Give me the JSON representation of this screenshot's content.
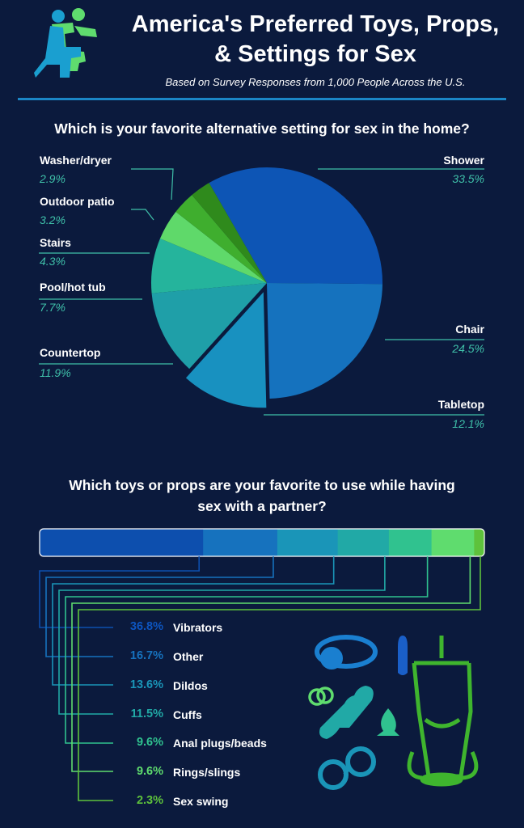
{
  "header": {
    "title_line1": "America's Preferred Toys, Props,",
    "title_line2": "& Settings for Sex",
    "subtitle": "Based on Survey Responses from 1,000 People Across the U.S."
  },
  "colors": {
    "background": "#0b1a3d",
    "accent_rule": "#1b86c6",
    "value_text": "#3fc0a9"
  },
  "chart_data": [
    {
      "type": "pie",
      "title": "Which is your favorite alternative setting for sex in the home?",
      "categories": [
        "Shower",
        "Chair",
        "Tabletop",
        "Countertop",
        "Pool/hot tub",
        "Stairs",
        "Outdoor patio",
        "Washer/dryer"
      ],
      "values": [
        33.5,
        24.5,
        12.1,
        11.9,
        7.7,
        4.3,
        3.2,
        2.9
      ],
      "value_labels": [
        "33.5%",
        "24.5%",
        "12.1%",
        "11.9%",
        "7.7%",
        "4.3%",
        "3.2%",
        "2.9%"
      ],
      "colors": [
        "#0d55b5",
        "#1572be",
        "#1891c0",
        "#1f9fa8",
        "#25b49c",
        "#5fd96a",
        "#3fae2e",
        "#2f8a1c"
      ]
    },
    {
      "type": "bar",
      "stacked": true,
      "title": "Which toys or props are your favorite to use while having sex with a partner?",
      "categories": [
        "Vibrators",
        "Other",
        "Dildos",
        "Cuffs",
        "Anal plugs/beads",
        "Rings/slings",
        "Sex swing"
      ],
      "values": [
        36.8,
        16.7,
        13.6,
        11.5,
        9.6,
        9.6,
        2.3
      ],
      "value_labels": [
        "36.8%",
        "16.7%",
        "13.6%",
        "11.5%",
        "9.6%",
        "9.6%",
        "2.3%"
      ],
      "colors": [
        "#0d4fae",
        "#1672be",
        "#1a95b8",
        "#21a9a6",
        "#30c28f",
        "#5fdc6e",
        "#5ec23c"
      ]
    }
  ],
  "icons": [
    "couple-figure-icon",
    "ball-gag-icon",
    "vibrator-icon",
    "rings-icon",
    "dildo-icon",
    "butt-plug-icon",
    "handcuffs-icon",
    "sex-swing-icon"
  ]
}
